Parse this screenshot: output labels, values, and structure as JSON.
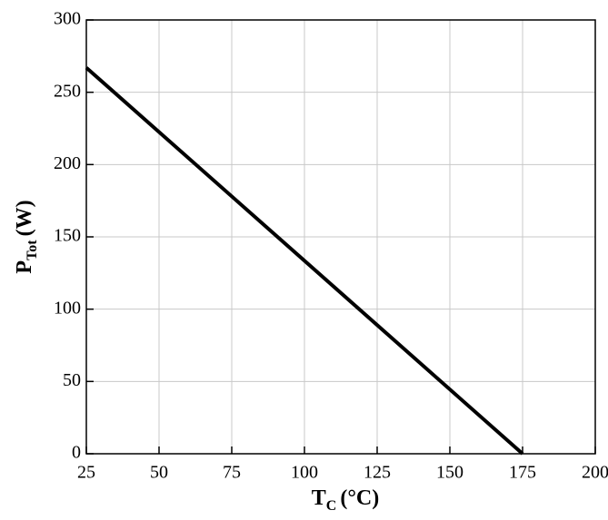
{
  "chart_data": {
    "type": "line",
    "y_label": "P",
    "y_label_sub": "Tot",
    "y_label_unit": "(W)",
    "x_label": "T",
    "x_label_sub": "C",
    "x_label_unit": "(°C)",
    "x": [
      25,
      175
    ],
    "series": [
      {
        "color": "#000000",
        "values": [
          267,
          0
        ]
      }
    ],
    "xlim": [
      25,
      200
    ],
    "xticks": [
      25,
      50,
      75,
      100,
      125,
      150,
      175,
      200
    ],
    "ylim": [
      0,
      300
    ],
    "yticks": [
      0,
      50,
      100,
      150,
      200,
      250,
      300
    ],
    "grid": true
  }
}
